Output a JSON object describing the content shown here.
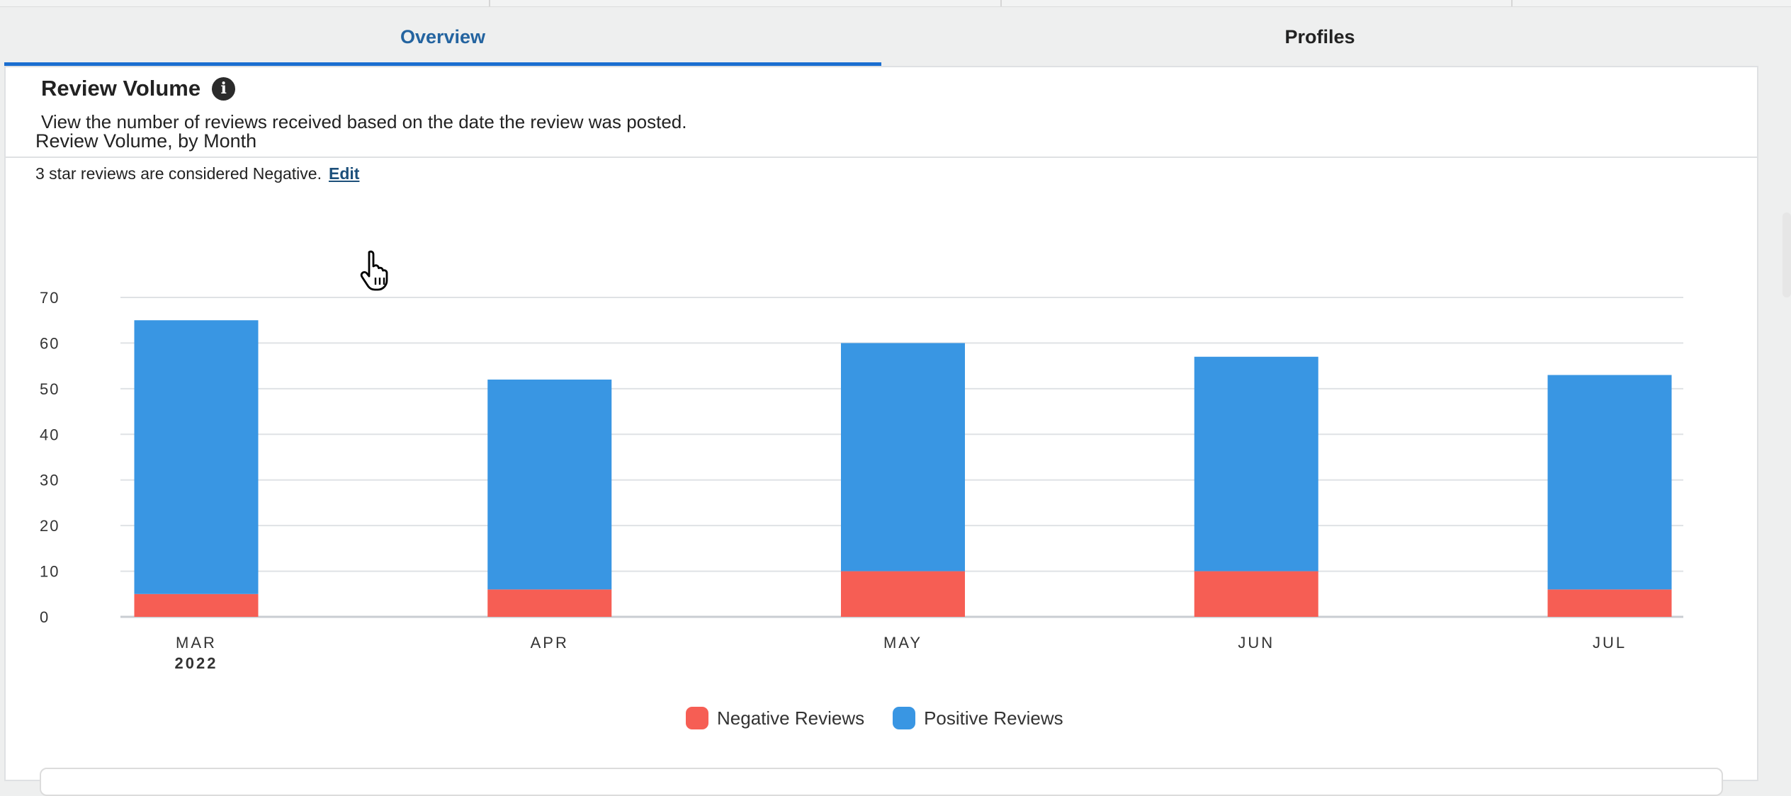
{
  "tabs": [
    {
      "label": "Overview",
      "active": true
    },
    {
      "label": "Profiles",
      "active": false
    }
  ],
  "section": {
    "title": "Review Volume",
    "description": "View the number of reviews received based on the date the review was posted."
  },
  "chart_header": {
    "title": "Review Volume, by Month",
    "note": "3 star reviews are considered Negative.",
    "edit_label": "Edit"
  },
  "chart_data": {
    "type": "bar",
    "stacked": true,
    "categories": [
      "MAR",
      "APR",
      "MAY",
      "JUN",
      "JUL"
    ],
    "year_label": "2022",
    "series": [
      {
        "name": "Negative Reviews",
        "color": "#f65e54",
        "values": [
          5,
          6,
          10,
          10,
          6
        ]
      },
      {
        "name": "Positive Reviews",
        "color": "#3996e3",
        "values": [
          60,
          46,
          50,
          47,
          47
        ]
      }
    ],
    "ylim": [
      0,
      70
    ],
    "yticks": [
      0,
      10,
      20,
      30,
      40,
      50,
      60,
      70
    ],
    "grid": true,
    "legend_position": "bottom-center"
  },
  "colors": {
    "accent": "#1b6ed0",
    "negative": "#f65e54",
    "positive": "#3996e3"
  }
}
